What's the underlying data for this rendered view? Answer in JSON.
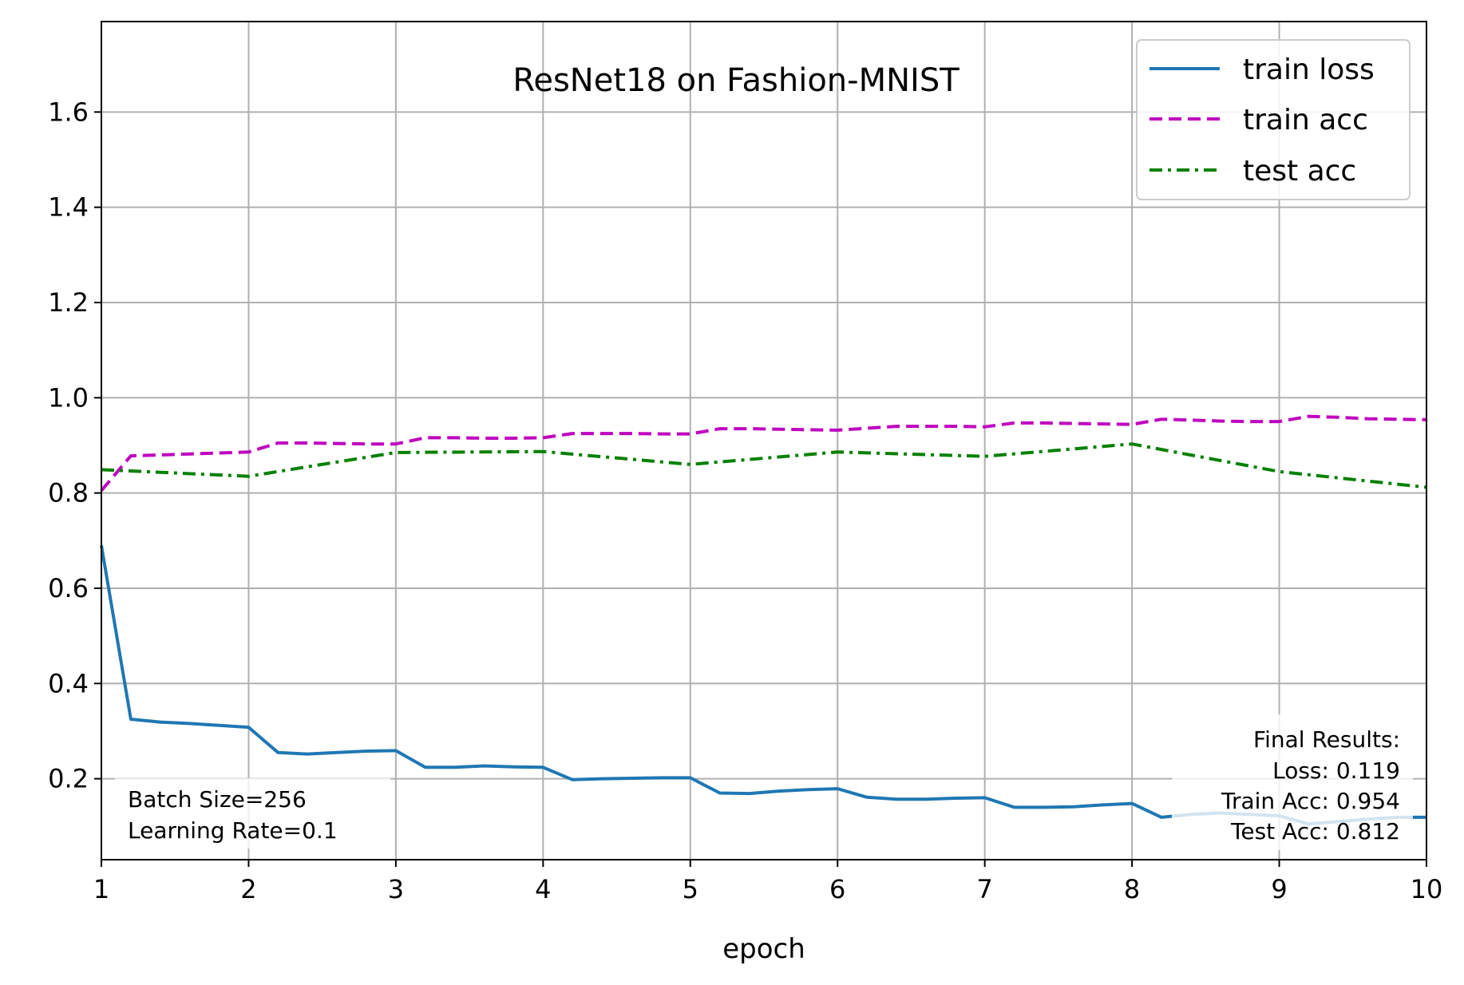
{
  "chart_data": {
    "type": "line",
    "title": "ResNet18 on Fashion-MNIST",
    "xlabel": "epoch",
    "ylabel": "",
    "xlim": [
      1,
      10
    ],
    "ylim": [
      0.03,
      1.79
    ],
    "xticks": [
      1,
      2,
      3,
      4,
      5,
      6,
      7,
      8,
      9,
      10
    ],
    "yticks": [
      0.2,
      0.4,
      0.6,
      0.8,
      1.0,
      1.2,
      1.4,
      1.6
    ],
    "ytick_labels": [
      "0.2",
      "0.4",
      "0.6",
      "0.8",
      "1.0",
      "1.2",
      "1.4",
      "1.6"
    ],
    "grid": true,
    "legend_position": "top-right",
    "series": [
      {
        "name": "train loss",
        "color": "#1f77b4",
        "style": "solid",
        "x": [
          1.0,
          1.2,
          1.4,
          1.6,
          1.8,
          2.0,
          2.2,
          2.4,
          2.6,
          2.8,
          3.0,
          3.2,
          3.4,
          3.6,
          3.8,
          4.0,
          4.2,
          4.4,
          4.6,
          4.8,
          5.0,
          5.2,
          5.4,
          5.6,
          5.8,
          6.0,
          6.2,
          6.4,
          6.6,
          6.8,
          7.0,
          7.2,
          7.4,
          7.6,
          7.8,
          8.0,
          8.2,
          8.4,
          8.6,
          8.8,
          9.0,
          9.2,
          9.4,
          9.6,
          9.8,
          10.0
        ],
        "y": [
          0.69,
          0.325,
          0.319,
          0.316,
          0.312,
          0.308,
          0.255,
          0.252,
          0.255,
          0.258,
          0.259,
          0.224,
          0.224,
          0.227,
          0.225,
          0.224,
          0.198,
          0.2,
          0.201,
          0.202,
          0.202,
          0.17,
          0.169,
          0.174,
          0.177,
          0.179,
          0.161,
          0.157,
          0.157,
          0.159,
          0.16,
          0.14,
          0.14,
          0.141,
          0.145,
          0.148,
          0.119,
          0.125,
          0.128,
          0.125,
          0.122,
          0.105,
          0.11,
          0.115,
          0.119,
          0.119
        ]
      },
      {
        "name": "train acc",
        "color": "#bf00bf",
        "style": "dashed",
        "x": [
          1.0,
          1.2,
          1.4,
          1.6,
          1.8,
          2.0,
          2.2,
          2.4,
          2.6,
          2.8,
          3.0,
          3.2,
          3.4,
          3.6,
          3.8,
          4.0,
          4.2,
          4.4,
          4.6,
          4.8,
          5.0,
          5.2,
          5.4,
          5.6,
          5.8,
          6.0,
          6.2,
          6.4,
          6.6,
          6.8,
          7.0,
          7.2,
          7.4,
          7.6,
          7.8,
          8.0,
          8.2,
          8.4,
          8.6,
          8.8,
          9.0,
          9.2,
          9.4,
          9.6,
          9.8,
          10.0
        ],
        "y": [
          0.805,
          0.878,
          0.88,
          0.882,
          0.884,
          0.886,
          0.905,
          0.905,
          0.904,
          0.903,
          0.903,
          0.916,
          0.916,
          0.915,
          0.915,
          0.916,
          0.925,
          0.925,
          0.925,
          0.924,
          0.924,
          0.935,
          0.935,
          0.934,
          0.933,
          0.932,
          0.936,
          0.94,
          0.94,
          0.94,
          0.939,
          0.947,
          0.947,
          0.946,
          0.945,
          0.944,
          0.955,
          0.953,
          0.951,
          0.95,
          0.95,
          0.961,
          0.959,
          0.956,
          0.955,
          0.954
        ]
      },
      {
        "name": "test acc",
        "color": "#008000",
        "style": "dashdot",
        "x": [
          1,
          2,
          3,
          4,
          5,
          6,
          7,
          8,
          9,
          10
        ],
        "y": [
          0.849,
          0.835,
          0.885,
          0.887,
          0.86,
          0.886,
          0.877,
          0.903,
          0.845,
          0.812
        ]
      }
    ],
    "annotations": {
      "left_lines": [
        "Batch Size=256",
        "Learning Rate=0.1"
      ],
      "right_lines": [
        "Final Results:",
        "Loss: 0.119",
        "Train Acc: 0.954",
        "Test Acc: 0.812"
      ]
    }
  }
}
